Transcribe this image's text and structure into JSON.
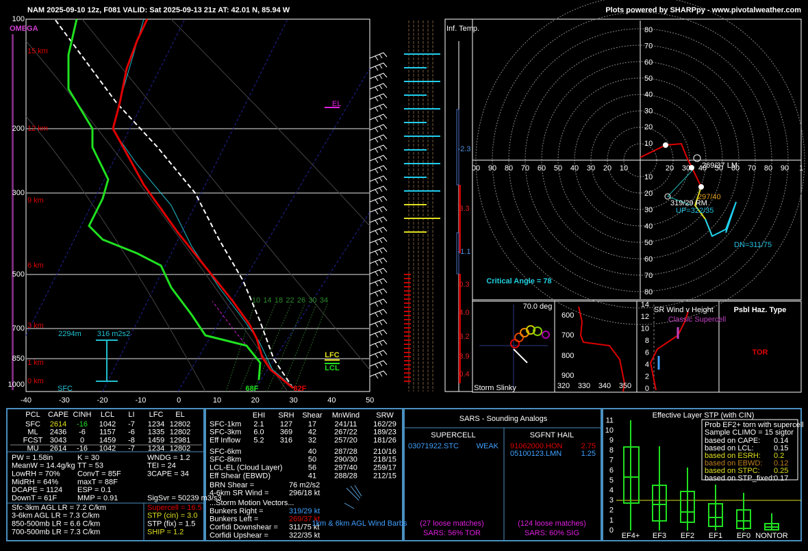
{
  "header": {
    "title": "NAM 2025-09-10 12z, F081  VALID: Sat 2025-09-13 21z  AT: 42.01 N, 85.94 W",
    "credit": "Plots powered by SHARPpy - www.pivotalweather.com"
  },
  "skewt": {
    "omega": "OMEGA",
    "pressure_labels": [
      "100",
      "200",
      "300",
      "500",
      "700",
      "850",
      "1000"
    ],
    "height_labels": [
      "15 km",
      "12 km",
      "9 km",
      "6 km",
      "3 km",
      "1 km",
      "0 km"
    ],
    "temp_labels": [
      "-40",
      "-30",
      "-20",
      "-10",
      "0",
      "10",
      "20",
      "30",
      "40",
      "50"
    ],
    "mixing_ratios": [
      "10",
      "14",
      "18",
      "22",
      "26",
      "30",
      "34"
    ],
    "el": "EL",
    "lfc": "LFC",
    "lcl": "LCL",
    "lcl_height": "2294m",
    "srh": "316 m2s2",
    "sfc": "SFC",
    "dewpoint": "68F",
    "temperature": "82F"
  },
  "inferred_temp": {
    "label": "Inf. Temp.",
    "values": [
      "-2.3",
      "3.3",
      "-1.1",
      "0.3",
      "4.0",
      "3.2",
      "3.9",
      "0.4"
    ]
  },
  "hodograph": {
    "top_labels": [
      "80",
      "70",
      "60",
      "50",
      "40",
      "30",
      "20",
      "10"
    ],
    "bottom_labels": [
      "10",
      "20",
      "30",
      "40",
      "50",
      "60",
      "70",
      "80"
    ],
    "left_labels": [
      "00",
      "90",
      "80",
      "70",
      "60",
      "50",
      "40",
      "30",
      "20",
      "10"
    ],
    "right_labels": [
      "20",
      "30",
      "40",
      "50",
      "60",
      "70",
      "80",
      "90",
      "1"
    ],
    "critical_angle": "Critical Angle = 78",
    "left_mover": "269/37 LM",
    "right_mover": "319/29 RM",
    "upshear": "UP=322/35",
    "mean_wind": "297/40",
    "downshear": "DN=311/75"
  },
  "slinky": {
    "angle": "70.0 deg",
    "label": "Storm Slinky"
  },
  "theta_e": {
    "pressure_labels": [
      "600",
      "700",
      "800",
      "900"
    ],
    "theta_labels": [
      "320",
      "330",
      "340",
      "350"
    ]
  },
  "sr_wind": {
    "height_labels": [
      "0",
      "2",
      "4",
      "6",
      "8",
      "10",
      "12",
      "14"
    ],
    "title": "SR Wind v Height",
    "note": "Classic Supercell"
  },
  "hazard": {
    "title": "Psbl Haz. Type",
    "type": "TOR"
  },
  "parcels": {
    "headers": [
      "PCL",
      "CAPE",
      "CINH",
      "LCL",
      "LI",
      "LFC",
      "EL"
    ],
    "rows": [
      [
        "SFC",
        "2614",
        "-16",
        "1042",
        "-7",
        "1234",
        "12802"
      ],
      [
        "ML",
        "2436",
        "-6",
        "1157",
        "-6",
        "1335",
        "12802"
      ],
      [
        "FCST",
        "3043",
        "0",
        "1459",
        "-8",
        "1459",
        "12981"
      ],
      [
        "MU",
        "2614",
        "-16",
        "1042",
        "-7",
        "1234",
        "12802"
      ]
    ]
  },
  "indices": {
    "left": [
      "PW = 1.58in",
      "MeanW = 14.4g/kg",
      "LowRH = 70%",
      "MidRH = 64%",
      "DCAPE = 1124",
      "DownT = 61F"
    ],
    "middle": [
      "K = 30",
      "TT = 53",
      "ConvT = 85F",
      "maxT = 88F",
      "ESP = 0.1",
      "MMP = 0.91"
    ],
    "right": [
      "WNDG = 1.2",
      "TEI = 24",
      "3CAPE = 34"
    ],
    "sigsvr": "SigSvr = 50239 m3/s3",
    "lapse_rates": [
      "Sfc-3km AGL LR = 7.2 C/km",
      "3-6km AGL LR = 7.3 C/km",
      "850-500mb LR = 6.6 C/km",
      "700-500mb LR = 7.3 C/km"
    ],
    "composites": [
      "Supercell = 16.5",
      "STP (cin) = 3.0",
      "STP (fix) = 1.5",
      "SHIP = 1.2"
    ]
  },
  "kinematics": {
    "headers": [
      "EHI",
      "SRH",
      "Shear",
      "MnWind",
      "SRW"
    ],
    "upper_rows": [
      [
        "SFC-1km",
        "2.1",
        "127",
        "17",
        "241/11",
        "162/29"
      ],
      [
        "SFC-3km",
        "6.0",
        "369",
        "42",
        "267/22",
        "189/23"
      ],
      [
        "Eff Inflow",
        "5.2",
        "316",
        "32",
        "257/20",
        "181/26"
      ]
    ],
    "lower_rows": [
      [
        "SFC-6km",
        "40",
        "287/28",
        "210/16"
      ],
      [
        "SFC-8km",
        "50",
        "290/30",
        "218/15"
      ],
      [
        "LCL-EL (Cloud Layer)",
        "56",
        "297/40",
        "259/17"
      ],
      [
        "Eff Shear (EBWD)",
        "41",
        "288/28",
        "212/15"
      ]
    ],
    "extras": [
      [
        "BRN Shear =",
        "76 m2/s2"
      ],
      [
        "4-6km SR Wind =",
        "296/18 kt"
      ]
    ],
    "motion_title": "...Storm Motion Vectors...",
    "motions": [
      [
        "Bunkers Right =",
        "319/29 kt"
      ],
      [
        "Bunkers Left =",
        "269/37 kt"
      ],
      [
        "Corfidi Downshear =",
        "311/75 kt"
      ],
      [
        "Corfidi Upshear =",
        "322/35 kt"
      ]
    ],
    "barbs_label": "1km & 6km AGL Wind Barbs"
  },
  "sars": {
    "title": "SARS - Sounding Analogs",
    "supercell": {
      "title": "SUPERCELL",
      "match": "03071922.STC",
      "match_type": "WEAK",
      "loose": "(27 loose matches)",
      "summary": "SARS: 56% TOR"
    },
    "hail": {
      "title": "SGFNT HAIL",
      "matches": [
        [
          "91062000.HON",
          "2.75"
        ],
        [
          "05100123.LMN",
          "1.25"
        ]
      ],
      "loose": "(124 loose matches)",
      "summary": "SARS: 60% SIG"
    }
  },
  "stp": {
    "title": "Effective Layer STP (with CIN)",
    "y_labels": [
      "0",
      "1",
      "2",
      "3",
      "4",
      "5",
      "6",
      "7",
      "8",
      "9",
      "10",
      "11"
    ],
    "x_labels": [
      "EF4+",
      "EF3",
      "EF2",
      "EF1",
      "EF0",
      "NONTOR"
    ],
    "box_title": "Prob EF2+ torn with supercell",
    "box_sample": "Sample CLIMO = 15 sigtor",
    "box_rows": [
      [
        "based on CAPE:",
        "0.14"
      ],
      [
        "based on LCL:",
        "0.15"
      ],
      [
        "based on ESRH:",
        "0.2"
      ],
      [
        "based on EBWD:",
        "0.12"
      ],
      [
        "based on STPC:",
        "0.25"
      ],
      [
        "based on STP_fixed:",
        "0.17"
      ]
    ]
  }
}
